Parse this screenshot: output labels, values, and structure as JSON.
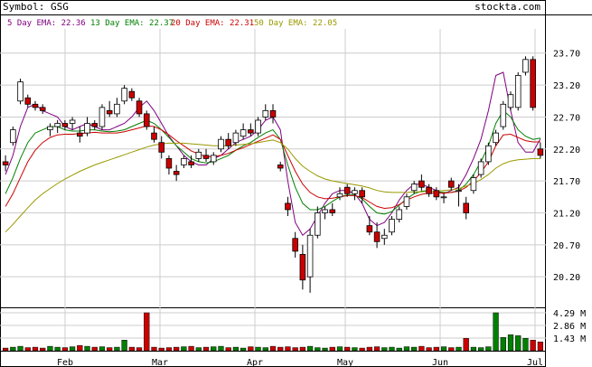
{
  "header": {
    "symbol_label": "Symbol: GSG",
    "site": "stockta.com"
  },
  "legend": [
    {
      "label": "5 Day EMA: 22.36",
      "color": "#800080"
    },
    {
      "label": "13 Day EMA: 22.37",
      "color": "#008000"
    },
    {
      "label": "20 Day EMA: 22.31",
      "color": "#cc0000"
    },
    {
      "label": "50 Day EMA: 22.05",
      "color": "#999900"
    }
  ],
  "colors": {
    "up": "#ffffff",
    "down": "#cc0000",
    "vol_up": "#008000",
    "vol_down": "#cc0000",
    "grid": "#cccccc",
    "frame": "#000000"
  },
  "chart_data": [
    {
      "type": "candlestick",
      "title": "Symbol: GSG",
      "ylim": [
        19.75,
        24.05
      ],
      "y_ticks": [
        "23.70",
        "23.20",
        "22.70",
        "22.20",
        "21.70",
        "21.20",
        "20.70",
        "20.20"
      ],
      "x_ticks": [
        "Feb",
        "Mar",
        "Apr",
        "May",
        "Jun",
        "Jul"
      ],
      "series_ema": [
        {
          "name": "5 Day EMA",
          "last": 22.36,
          "values": [
            21.8,
            22.1,
            22.55,
            22.85,
            22.9,
            22.8,
            22.75,
            22.7,
            22.55,
            22.5,
            22.55,
            22.6,
            22.55,
            22.5,
            22.5,
            22.55,
            22.6,
            22.7,
            22.85,
            22.95,
            22.8,
            22.6,
            22.4,
            22.25,
            22.1,
            22.0,
            21.95,
            21.95,
            22.05,
            22.1,
            22.2,
            22.3,
            22.35,
            22.4,
            22.5,
            22.65,
            22.7,
            22.5,
            21.7,
            21.05,
            20.85,
            20.95,
            21.15,
            21.35,
            21.5,
            21.55,
            21.55,
            21.5,
            21.35,
            21.1,
            21.0,
            21.05,
            21.2,
            21.4,
            21.55,
            21.65,
            21.65,
            21.6,
            21.55,
            21.5,
            21.55,
            21.6,
            21.8,
            22.05,
            22.35,
            22.8,
            23.35,
            23.4,
            22.8,
            22.3,
            22.15,
            22.15,
            22.36
          ]
        },
        {
          "name": "13 Day EMA",
          "last": 22.37,
          "values": [
            21.5,
            21.75,
            22.05,
            22.3,
            22.45,
            22.5,
            22.55,
            22.55,
            22.5,
            22.48,
            22.48,
            22.5,
            22.5,
            22.48,
            22.47,
            22.48,
            22.5,
            22.55,
            22.6,
            22.65,
            22.6,
            22.5,
            22.38,
            22.25,
            22.15,
            22.05,
            22.0,
            21.98,
            22.0,
            22.05,
            22.1,
            22.18,
            22.25,
            22.3,
            22.38,
            22.45,
            22.5,
            22.35,
            21.95,
            21.6,
            21.35,
            21.25,
            21.25,
            21.3,
            21.38,
            21.45,
            21.48,
            21.48,
            21.42,
            21.3,
            21.2,
            21.18,
            21.22,
            21.32,
            21.42,
            21.5,
            21.54,
            21.55,
            21.53,
            21.52,
            21.52,
            21.55,
            21.65,
            21.8,
            22.0,
            22.25,
            22.6,
            22.8,
            22.7,
            22.5,
            22.4,
            22.35,
            22.37
          ]
        },
        {
          "name": "20 Day EMA",
          "last": 22.31,
          "values": [
            21.3,
            21.5,
            21.75,
            22.0,
            22.18,
            22.3,
            22.38,
            22.42,
            22.43,
            22.43,
            22.44,
            22.45,
            22.46,
            22.45,
            22.45,
            22.45,
            22.47,
            22.5,
            22.53,
            22.56,
            22.55,
            22.5,
            22.42,
            22.33,
            22.25,
            22.17,
            22.12,
            22.08,
            22.08,
            22.1,
            22.13,
            22.18,
            22.22,
            22.27,
            22.32,
            22.37,
            22.42,
            22.35,
            22.1,
            21.85,
            21.65,
            21.52,
            21.45,
            21.42,
            21.43,
            21.45,
            21.47,
            21.47,
            21.44,
            21.37,
            21.3,
            21.27,
            21.28,
            21.33,
            21.4,
            21.45,
            21.49,
            21.51,
            21.51,
            21.51,
            21.52,
            21.54,
            21.6,
            21.7,
            21.83,
            22.0,
            22.25,
            22.42,
            22.43,
            22.38,
            22.33,
            22.31,
            22.31
          ]
        },
        {
          "name": "50 Day EMA",
          "last": 22.05,
          "values": [
            20.9,
            21.02,
            21.15,
            21.28,
            21.4,
            21.5,
            21.58,
            21.66,
            21.73,
            21.79,
            21.85,
            21.9,
            21.95,
            21.99,
            22.03,
            22.07,
            22.11,
            22.15,
            22.19,
            22.23,
            22.26,
            22.28,
            22.29,
            22.29,
            22.29,
            22.28,
            22.27,
            22.26,
            22.25,
            22.25,
            22.25,
            22.26,
            22.27,
            22.28,
            22.3,
            22.32,
            22.34,
            22.3,
            22.2,
            22.05,
            21.93,
            21.85,
            21.78,
            21.73,
            21.7,
            21.68,
            21.66,
            21.64,
            21.62,
            21.59,
            21.55,
            21.53,
            21.52,
            21.52,
            21.52,
            21.53,
            21.53,
            21.54,
            21.54,
            21.55,
            21.56,
            21.58,
            21.62,
            21.66,
            21.72,
            21.8,
            21.9,
            21.97,
            22.01,
            22.03,
            22.04,
            22.05,
            22.05
          ]
        }
      ],
      "ohlc": [
        [
          22.0,
          22.1,
          21.85,
          21.95
        ],
        [
          22.3,
          22.55,
          22.25,
          22.5
        ],
        [
          22.95,
          23.3,
          22.9,
          23.25
        ],
        [
          23.0,
          23.05,
          22.85,
          22.9
        ],
        [
          22.9,
          22.95,
          22.8,
          22.85
        ],
        [
          22.85,
          22.9,
          22.75,
          22.8
        ],
        [
          22.5,
          22.6,
          22.4,
          22.55
        ],
        [
          22.55,
          22.65,
          22.45,
          22.6
        ],
        [
          22.6,
          22.65,
          22.5,
          22.55
        ],
        [
          22.6,
          22.7,
          22.5,
          22.65
        ],
        [
          22.45,
          22.55,
          22.3,
          22.4
        ],
        [
          22.45,
          22.7,
          22.4,
          22.6
        ],
        [
          22.6,
          22.65,
          22.5,
          22.55
        ],
        [
          22.55,
          22.9,
          22.5,
          22.85
        ],
        [
          22.8,
          22.95,
          22.7,
          22.75
        ],
        [
          22.75,
          23.0,
          22.7,
          22.9
        ],
        [
          22.95,
          23.2,
          22.9,
          23.15
        ],
        [
          23.1,
          23.15,
          22.95,
          23.0
        ],
        [
          22.95,
          23.0,
          22.7,
          22.75
        ],
        [
          22.75,
          22.8,
          22.5,
          22.55
        ],
        [
          22.45,
          22.55,
          22.3,
          22.35
        ],
        [
          22.3,
          22.4,
          22.05,
          22.15
        ],
        [
          22.05,
          22.1,
          21.8,
          21.9
        ],
        [
          21.85,
          21.95,
          21.7,
          21.8
        ],
        [
          21.95,
          22.1,
          21.9,
          22.05
        ],
        [
          22.0,
          22.1,
          21.9,
          21.95
        ],
        [
          22.05,
          22.2,
          22.0,
          22.15
        ],
        [
          22.1,
          22.2,
          22.0,
          22.05
        ],
        [
          22.0,
          22.15,
          21.95,
          22.1
        ],
        [
          22.2,
          22.4,
          22.15,
          22.35
        ],
        [
          22.35,
          22.45,
          22.2,
          22.25
        ],
        [
          22.3,
          22.5,
          22.25,
          22.45
        ],
        [
          22.4,
          22.6,
          22.35,
          22.5
        ],
        [
          22.5,
          22.6,
          22.4,
          22.45
        ],
        [
          22.45,
          22.7,
          22.4,
          22.65
        ],
        [
          22.7,
          22.9,
          22.65,
          22.8
        ],
        [
          22.8,
          22.9,
          22.6,
          22.7
        ],
        [
          21.95,
          22.0,
          21.85,
          21.9
        ],
        [
          21.35,
          21.45,
          21.15,
          21.25
        ],
        [
          20.8,
          20.9,
          20.5,
          20.6
        ],
        [
          20.55,
          20.7,
          20.0,
          20.15
        ],
        [
          20.2,
          20.95,
          19.95,
          20.85
        ],
        [
          20.85,
          21.3,
          20.8,
          21.2
        ],
        [
          21.2,
          21.3,
          21.1,
          21.25
        ],
        [
          21.25,
          21.35,
          21.15,
          21.2
        ],
        [
          21.45,
          21.6,
          21.4,
          21.5
        ],
        [
          21.6,
          21.65,
          21.45,
          21.5
        ],
        [
          21.5,
          21.6,
          21.4,
          21.55
        ],
        [
          21.55,
          21.6,
          21.35,
          21.45
        ],
        [
          21.0,
          21.15,
          20.85,
          20.9
        ],
        [
          20.9,
          21.05,
          20.65,
          20.75
        ],
        [
          20.8,
          20.95,
          20.7,
          20.85
        ],
        [
          20.9,
          21.15,
          20.85,
          21.1
        ],
        [
          21.1,
          21.3,
          21.05,
          21.25
        ],
        [
          21.3,
          21.5,
          21.25,
          21.45
        ],
        [
          21.55,
          21.7,
          21.5,
          21.65
        ],
        [
          21.7,
          21.8,
          21.55,
          21.6
        ],
        [
          21.6,
          21.65,
          21.45,
          21.5
        ],
        [
          21.55,
          21.6,
          21.4,
          21.45
        ],
        [
          21.45,
          21.5,
          21.35,
          21.45
        ],
        [
          21.7,
          21.75,
          21.55,
          21.6
        ],
        [
          21.55,
          21.65,
          21.3,
          21.55
        ],
        [
          21.35,
          21.45,
          21.1,
          21.2
        ],
        [
          21.55,
          21.8,
          21.5,
          21.75
        ],
        [
          21.8,
          22.05,
          21.75,
          22.0
        ],
        [
          22.0,
          22.3,
          21.95,
          22.25
        ],
        [
          22.3,
          22.5,
          22.25,
          22.45
        ],
        [
          22.55,
          22.95,
          22.5,
          22.9
        ],
        [
          22.85,
          23.1,
          22.8,
          23.05
        ],
        [
          22.85,
          23.4,
          22.8,
          23.35
        ],
        [
          23.4,
          23.65,
          23.35,
          23.6
        ],
        [
          23.6,
          23.65,
          22.8,
          22.85
        ],
        [
          22.2,
          22.3,
          22.05,
          22.1
        ]
      ],
      "volume": {
        "ylim": [
          0,
          4.6
        ],
        "y_ticks": [
          "4.29 M",
          "2.86 M",
          "1.43 M"
        ],
        "values": [
          0.3,
          0.4,
          0.5,
          0.35,
          0.4,
          0.3,
          0.5,
          0.4,
          0.35,
          0.45,
          0.6,
          0.5,
          0.4,
          0.45,
          0.35,
          0.4,
          1.2,
          0.4,
          0.35,
          4.29,
          0.4,
          0.3,
          0.35,
          0.4,
          0.45,
          0.5,
          0.35,
          0.4,
          0.45,
          0.5,
          0.35,
          0.4,
          0.3,
          0.45,
          0.4,
          0.35,
          0.5,
          0.4,
          0.45,
          0.35,
          0.4,
          0.5,
          0.35,
          0.3,
          0.4,
          0.45,
          0.4,
          0.35,
          0.3,
          0.4,
          0.45,
          0.35,
          0.4,
          0.3,
          0.45,
          0.4,
          0.5,
          0.35,
          0.4,
          0.45,
          0.35,
          0.4,
          1.4,
          0.4,
          0.35,
          0.45,
          4.29,
          1.5,
          1.8,
          1.7,
          1.4,
          1.2,
          1.0
        ]
      }
    }
  ]
}
